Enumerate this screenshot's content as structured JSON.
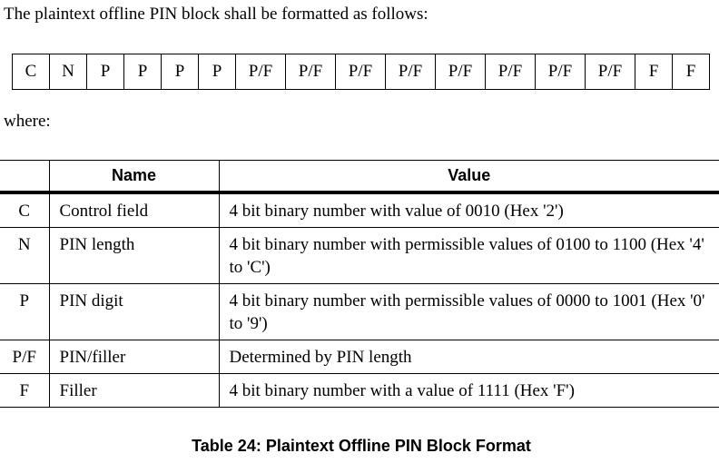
{
  "intro": "The plaintext offline PIN block shall be formatted as follows:",
  "pin_block": [
    "C",
    "N",
    "P",
    "P",
    "P",
    "P",
    "P/F",
    "P/F",
    "P/F",
    "P/F",
    "P/F",
    "P/F",
    "P/F",
    "P/F",
    "F",
    "F"
  ],
  "where": "where:",
  "table": {
    "headers": [
      "",
      "Name",
      "Value"
    ],
    "rows": [
      {
        "symbol": "C",
        "name": "Control field",
        "value": "4 bit binary number with value of 0010 (Hex '2')"
      },
      {
        "symbol": "N",
        "name": "PIN length",
        "value": "4 bit binary number with permissible values of 0100 to 1100 (Hex '4' to 'C')"
      },
      {
        "symbol": "P",
        "name": "PIN digit",
        "value": "4 bit binary number with permissible values of 0000 to 1001 (Hex '0' to '9')"
      },
      {
        "symbol": "P/F",
        "name": "PIN/filler",
        "value": "Determined by PIN length"
      },
      {
        "symbol": "F",
        "name": "Filler",
        "value": "4 bit binary number with a value of 1111 (Hex 'F')"
      }
    ]
  },
  "caption": "Table 24:  Plaintext Offline PIN Block Format"
}
